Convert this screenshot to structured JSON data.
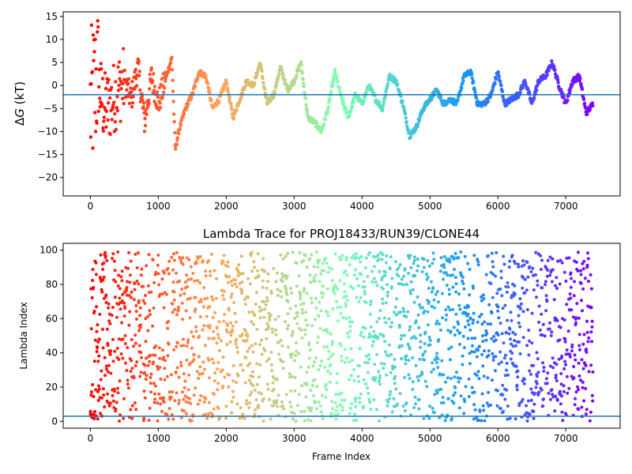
{
  "chart_data": [
    {
      "type": "scatter",
      "title": "",
      "xlabel": "",
      "ylabel": "ΔG (kT)",
      "ylabel_parts": {
        "symbol": "ΔG",
        "italic": "G",
        "prefix": "Δ",
        "unit": "(kT)"
      },
      "xlim": [
        -400,
        7800
      ],
      "ylim": [
        -24,
        16
      ],
      "xticks": [
        0,
        1000,
        2000,
        3000,
        4000,
        5000,
        6000,
        7000
      ],
      "yticks": [
        -20,
        -15,
        -10,
        -5,
        0,
        5,
        10,
        15
      ],
      "reference_line": {
        "y": -2,
        "color": "#1f77b4"
      },
      "colormap": "rainbow (red = early frames, violet = late frames)",
      "color_stops": [
        "#ff0000",
        "#ffa256",
        "#80ffb4",
        "#1996f3",
        "#8000ff"
      ],
      "frame_count": 7400,
      "trace_keypoints": {
        "x": [
          0,
          100,
          200,
          300,
          400,
          500,
          600,
          700,
          800,
          900,
          1000,
          1100,
          1200,
          1250,
          1300,
          1400,
          1500,
          1600,
          1700,
          1800,
          1900,
          2000,
          2100,
          2200,
          2300,
          2400,
          2500,
          2600,
          2700,
          2800,
          2900,
          3000,
          3100,
          3200,
          3300,
          3400,
          3500,
          3600,
          3700,
          3800,
          3900,
          4000,
          4100,
          4200,
          4300,
          4400,
          4500,
          4600,
          4700,
          4800,
          4900,
          5000,
          5100,
          5200,
          5300,
          5400,
          5500,
          5600,
          5700,
          5800,
          5900,
          6000,
          6100,
          6200,
          6300,
          6400,
          6500,
          6600,
          6700,
          6800,
          6900,
          7000,
          7100,
          7200,
          7300,
          7400
        ],
        "y": [
          -5,
          2,
          -5,
          -4,
          -1,
          1,
          -3,
          4,
          -8,
          2,
          -4,
          1,
          6,
          -14,
          -10,
          -5,
          -2,
          3,
          2,
          -5,
          -3,
          1,
          -7,
          -3,
          1,
          0,
          5,
          -4,
          -2,
          4,
          -1,
          1,
          5,
          -7,
          -8,
          -10,
          -5,
          3,
          -3,
          -7,
          -2,
          -4,
          0,
          -3,
          -5,
          2,
          1,
          -4,
          -11,
          -9,
          -5,
          -3,
          -1,
          -4,
          -3,
          -4,
          2,
          3,
          -4,
          -4,
          -2,
          3,
          -4,
          -3,
          -2,
          1,
          -4,
          1,
          2,
          5,
          0,
          -4,
          1,
          2,
          -6,
          -4
        ]
      }
    },
    {
      "type": "scatter",
      "title": "Lambda Trace for PROJ18433/RUN39/CLONE44",
      "xlabel": "Frame Index",
      "ylabel": "Lambda Index",
      "xlim": [
        -400,
        7800
      ],
      "ylim": [
        -4,
        104
      ],
      "xticks": [
        0,
        1000,
        2000,
        3000,
        4000,
        5000,
        6000,
        7000
      ],
      "yticks": [
        0,
        20,
        40,
        60,
        80,
        100
      ],
      "reference_line": {
        "y": 3,
        "color": "#1f77b4"
      },
      "colormap": "rainbow (red = early frames, violet = late frames)",
      "color_stops": [
        "#ff0000",
        "#ffa256",
        "#80ffb4",
        "#1996f3",
        "#8000ff"
      ],
      "frame_count": 7400,
      "value_range": [
        0,
        99
      ]
    }
  ]
}
